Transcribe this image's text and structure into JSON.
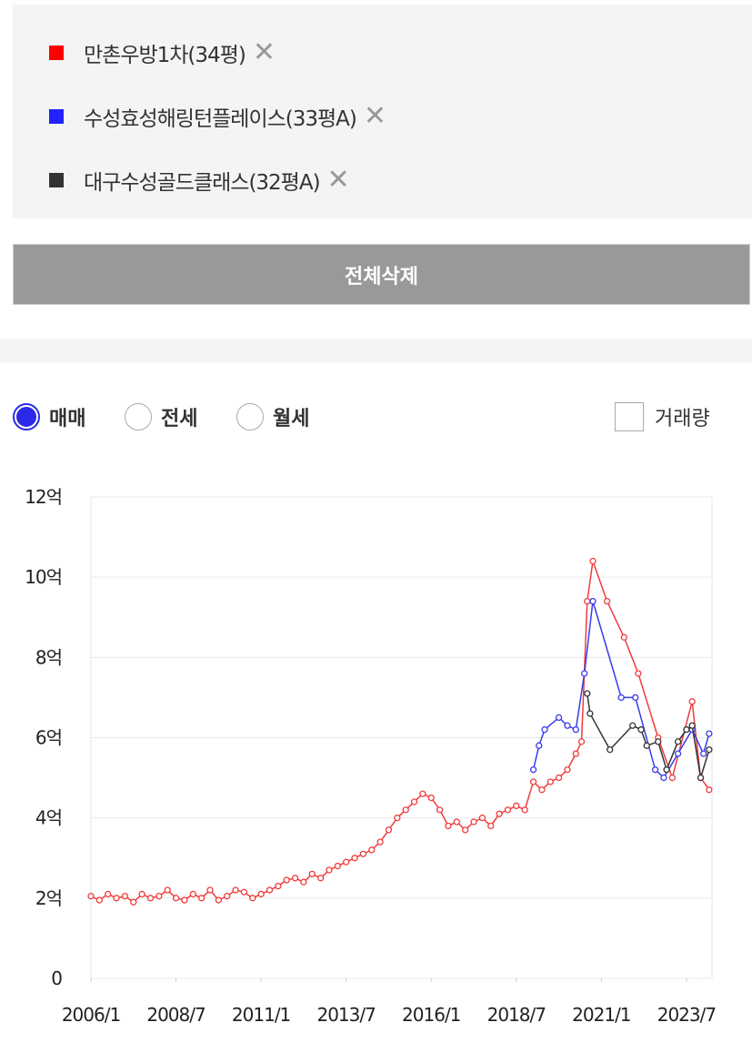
{
  "panel": {
    "remove_all": "전체삭제"
  },
  "controls": {
    "trade_types": [
      "매매",
      "전세",
      "월세"
    ],
    "volume": "거래량"
  },
  "chart_data": {
    "type": "line",
    "xlim": [
      "2006/1",
      "2024/4"
    ],
    "xticks": [
      "2006/1",
      "2008/7",
      "2011/1",
      "2013/7",
      "2016/1",
      "2018/7",
      "2021/1",
      "2023/7"
    ],
    "ylim": [
      0,
      12
    ],
    "yticks": [
      0,
      {
        "value": 2,
        "label": "2억"
      },
      {
        "value": 4,
        "label": "4억"
      },
      {
        "value": 6,
        "label": "6억"
      },
      {
        "value": 8,
        "label": "8억"
      },
      {
        "value": 10,
        "label": "10억"
      },
      {
        "value": 12,
        "label": "12억"
      }
    ],
    "grid": true,
    "series": [
      {
        "name": "만촌우방1차(34평)",
        "color": "#f03c3c",
        "x": [
          "2006/1",
          "2006/4",
          "2006/7",
          "2006/10",
          "2007/1",
          "2007/4",
          "2007/7",
          "2007/10",
          "2008/1",
          "2008/4",
          "2008/7",
          "2008/10",
          "2009/1",
          "2009/4",
          "2009/7",
          "2009/10",
          "2010/1",
          "2010/4",
          "2010/7",
          "2010/10",
          "2011/1",
          "2011/4",
          "2011/7",
          "2011/10",
          "2012/1",
          "2012/4",
          "2012/7",
          "2012/10",
          "2013/1",
          "2013/4",
          "2013/7",
          "2013/10",
          "2014/1",
          "2014/4",
          "2014/7",
          "2014/10",
          "2015/1",
          "2015/4",
          "2015/7",
          "2015/10",
          "2016/1",
          "2016/4",
          "2016/7",
          "2016/10",
          "2017/1",
          "2017/4",
          "2017/7",
          "2017/10",
          "2018/1",
          "2018/4",
          "2018/7",
          "2018/10",
          "2019/1",
          "2019/4",
          "2019/7",
          "2019/10",
          "2020/1",
          "2020/4",
          "2020/6",
          "2020/8",
          "2020/10",
          "2021/3",
          "2021/9",
          "2022/2",
          "2022/9",
          "2023/2",
          "2023/9",
          "2023/12",
          "2024/3"
        ],
        "values": [
          2.05,
          1.95,
          2.1,
          2.0,
          2.05,
          1.9,
          2.1,
          2.0,
          2.05,
          2.2,
          2.0,
          1.95,
          2.1,
          2.0,
          2.2,
          1.95,
          2.05,
          2.2,
          2.15,
          2.0,
          2.1,
          2.2,
          2.3,
          2.45,
          2.5,
          2.4,
          2.6,
          2.5,
          2.7,
          2.8,
          2.9,
          3.0,
          3.1,
          3.2,
          3.4,
          3.7,
          4.0,
          4.2,
          4.4,
          4.6,
          4.5,
          4.2,
          3.8,
          3.9,
          3.7,
          3.9,
          4.0,
          3.8,
          4.1,
          4.2,
          4.3,
          4.2,
          4.9,
          4.7,
          4.9,
          5.0,
          5.2,
          5.6,
          5.9,
          9.4,
          10.4,
          9.4,
          8.5,
          7.6,
          6.0,
          5.0,
          6.9,
          5.0,
          4.7
        ]
      },
      {
        "name": "수성효성해링턴플레이스(33평A)",
        "color": "#3a3aee",
        "x": [
          "2019/1",
          "2019/3",
          "2019/5",
          "2019/10",
          "2020/1",
          "2020/4",
          "2020/7",
          "2020/10",
          "2021/8",
          "2022/1",
          "2022/8",
          "2022/11",
          "2023/4",
          "2023/9",
          "2024/1",
          "2024/3"
        ],
        "values": [
          5.2,
          5.8,
          6.2,
          6.5,
          6.3,
          6.2,
          7.6,
          9.4,
          7.0,
          7.0,
          5.2,
          5.0,
          5.6,
          6.2,
          5.6,
          6.1
        ]
      },
      {
        "name": "대구수성골드클래스(32평A)",
        "color": "#333333",
        "x": [
          "2020/8",
          "2020/9",
          "2021/4",
          "2021/12",
          "2022/3",
          "2022/5",
          "2022/9",
          "2022/12",
          "2023/4",
          "2023/7",
          "2023/9",
          "2023/12",
          "2024/3"
        ],
        "values": [
          7.1,
          6.6,
          5.7,
          6.3,
          6.2,
          5.8,
          5.9,
          5.2,
          5.9,
          6.2,
          6.3,
          5.0,
          5.7
        ]
      }
    ]
  }
}
